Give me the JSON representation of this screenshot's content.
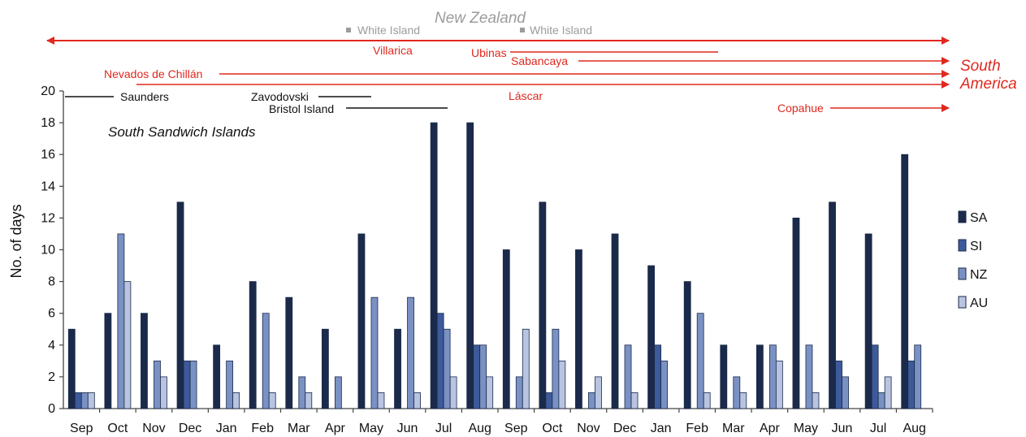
{
  "chart_data": {
    "type": "bar",
    "ylabel": "No. of days",
    "xlabel": "",
    "ylim": [
      0,
      20
    ],
    "yticks": [
      "0",
      "2",
      "4",
      "6",
      "8",
      "10",
      "12",
      "14",
      "16",
      "18",
      "20"
    ],
    "grid": false,
    "legend_position": "right",
    "categories": [
      "Sep",
      "Oct",
      "Nov",
      "Dec",
      "Jan",
      "Feb",
      "Mar",
      "Apr",
      "May",
      "Jun",
      "Jul",
      "Aug",
      "Sep",
      "Oct",
      "Nov",
      "Dec",
      "Jan",
      "Feb",
      "Mar",
      "Apr",
      "May",
      "Jun",
      "Jul",
      "Aug"
    ],
    "series": [
      {
        "name": "SA",
        "color": "#1b2a4a",
        "values": [
          5,
          6,
          6,
          13,
          4,
          8,
          7,
          5,
          11,
          5,
          18,
          18,
          10,
          13,
          10,
          11,
          9,
          8,
          4,
          4,
          12,
          13,
          11,
          16
        ]
      },
      {
        "name": "SI",
        "color": "#3d5a9a",
        "values": [
          1,
          0,
          0,
          3,
          0,
          0,
          0,
          0,
          0,
          0,
          6,
          4,
          0,
          1,
          0,
          0,
          4,
          0,
          0,
          0,
          0,
          3,
          4,
          3
        ]
      },
      {
        "name": "NZ",
        "color": "#7a91c4",
        "values": [
          1,
          11,
          3,
          3,
          3,
          6,
          2,
          2,
          7,
          7,
          5,
          4,
          2,
          5,
          1,
          4,
          3,
          6,
          2,
          4,
          4,
          2,
          1,
          4
        ]
      },
      {
        "name": "AU",
        "color": "#b8c4e0",
        "values": [
          1,
          8,
          2,
          0,
          1,
          1,
          1,
          0,
          1,
          1,
          2,
          2,
          5,
          3,
          2,
          1,
          0,
          1,
          1,
          3,
          1,
          0,
          2,
          0
        ]
      }
    ],
    "annotations": {
      "new_zealand_label": "New Zealand",
      "south_america_label": [
        "South",
        "America"
      ],
      "ssi_label": "South Sandwich Islands",
      "volcanoes": [
        {
          "name": "White Island",
          "group": "nz",
          "start": 10.0,
          "end": null
        },
        {
          "name": "White Island",
          "group": "nz",
          "start": 14.9,
          "end": null
        },
        {
          "name": "Villarica",
          "group": "sa",
          "start": 0.0,
          "end": null
        },
        {
          "name": "Ubinas",
          "group": "sa",
          "start": 14.3,
          "end": 19.8
        },
        {
          "name": "Sabancaya",
          "group": "sa",
          "start": 15.9,
          "end": null
        },
        {
          "name": "Nevados de Chillán",
          "group": "sa",
          "start": 5.8,
          "end": null
        },
        {
          "name": "Láscar",
          "group": "sa",
          "start": 2.3,
          "end": null
        },
        {
          "name": "Copahue",
          "group": "sa",
          "start": 23.0,
          "end": null
        },
        {
          "name": "Saunders",
          "group": "ssi",
          "start": 0.0,
          "end": 1.8
        },
        {
          "name": "Zavodovski",
          "group": "ssi",
          "start": 8.8,
          "end": 10.3
        },
        {
          "name": "Bristol Island",
          "group": "ssi",
          "start": 10.3,
          "end": 12.9
        }
      ]
    }
  },
  "colors": {
    "sa_annotation": "#e0281f",
    "nz_annotation": "#9c9c9c",
    "ssi_annotation": "#111111"
  }
}
